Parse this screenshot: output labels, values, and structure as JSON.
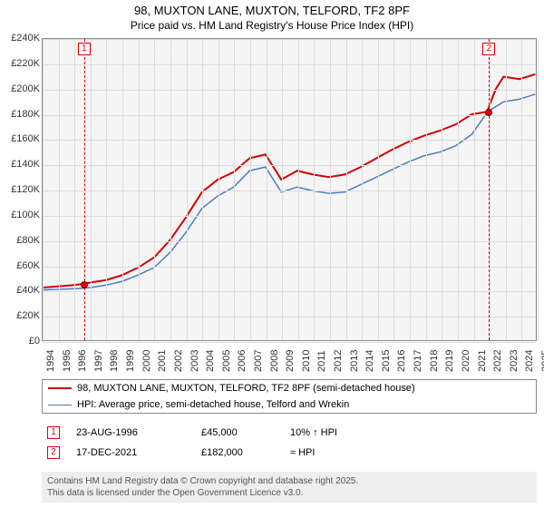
{
  "title_line1": "98, MUXTON LANE, MUXTON, TELFORD, TF2 8PF",
  "title_line2": "Price paid vs. HM Land Registry's House Price Index (HPI)",
  "chart": {
    "type": "line",
    "background_color": "#f5f5f5",
    "grid_color": "#dddddd",
    "border_color": "#888888",
    "x_min": 1994,
    "x_max": 2025,
    "y_min": 0,
    "y_max": 240000,
    "y_ticks": [
      0,
      20000,
      40000,
      60000,
      80000,
      100000,
      120000,
      140000,
      160000,
      180000,
      200000,
      220000,
      240000
    ],
    "y_tick_labels": [
      "£0",
      "£20K",
      "£40K",
      "£60K",
      "£80K",
      "£100K",
      "£120K",
      "£140K",
      "£160K",
      "£180K",
      "£200K",
      "£220K",
      "£240K"
    ],
    "x_ticks": [
      1994,
      1995,
      1996,
      1997,
      1998,
      1999,
      2000,
      2001,
      2002,
      2003,
      2004,
      2005,
      2006,
      2007,
      2008,
      2009,
      2010,
      2011,
      2012,
      2013,
      2014,
      2015,
      2016,
      2017,
      2018,
      2019,
      2020,
      2021,
      2022,
      2023,
      2024,
      2025
    ],
    "series": [
      {
        "name": "price_paid",
        "legend": "98, MUXTON LANE, MUXTON, TELFORD, TF2 8PF (semi-detached house)",
        "color": "#d00000",
        "width": 2,
        "points": [
          [
            1994,
            42000
          ],
          [
            1995,
            43000
          ],
          [
            1996,
            44000
          ],
          [
            1996.6,
            45000
          ],
          [
            1997,
            46000
          ],
          [
            1998,
            48000
          ],
          [
            1999,
            52000
          ],
          [
            2000,
            58000
          ],
          [
            2001,
            66000
          ],
          [
            2002,
            80000
          ],
          [
            2003,
            98000
          ],
          [
            2004,
            118000
          ],
          [
            2005,
            128000
          ],
          [
            2006,
            134000
          ],
          [
            2007,
            145000
          ],
          [
            2008,
            148000
          ],
          [
            2009,
            128000
          ],
          [
            2010,
            135000
          ],
          [
            2011,
            132000
          ],
          [
            2012,
            130000
          ],
          [
            2013,
            132000
          ],
          [
            2014,
            138000
          ],
          [
            2015,
            145000
          ],
          [
            2016,
            152000
          ],
          [
            2017,
            158000
          ],
          [
            2018,
            163000
          ],
          [
            2019,
            167000
          ],
          [
            2020,
            172000
          ],
          [
            2021,
            180000
          ],
          [
            2021.96,
            182000
          ],
          [
            2022.5,
            200000
          ],
          [
            2023,
            210000
          ],
          [
            2024,
            208000
          ],
          [
            2025,
            212000
          ]
        ]
      },
      {
        "name": "hpi",
        "legend": "HPI: Average price, semi-detached house, Telford and Wrekin",
        "color": "#4a7dc0",
        "width": 1.5,
        "points": [
          [
            1994,
            40000
          ],
          [
            1995,
            40500
          ],
          [
            1996,
            41000
          ],
          [
            1997,
            42000
          ],
          [
            1998,
            44000
          ],
          [
            1999,
            47000
          ],
          [
            2000,
            52000
          ],
          [
            2001,
            58000
          ],
          [
            2002,
            70000
          ],
          [
            2003,
            86000
          ],
          [
            2004,
            105000
          ],
          [
            2005,
            115000
          ],
          [
            2006,
            122000
          ],
          [
            2007,
            135000
          ],
          [
            2008,
            138000
          ],
          [
            2009,
            118000
          ],
          [
            2010,
            122000
          ],
          [
            2011,
            119000
          ],
          [
            2012,
            117000
          ],
          [
            2013,
            118000
          ],
          [
            2014,
            124000
          ],
          [
            2015,
            130000
          ],
          [
            2016,
            136000
          ],
          [
            2017,
            142000
          ],
          [
            2018,
            147000
          ],
          [
            2019,
            150000
          ],
          [
            2020,
            155000
          ],
          [
            2021,
            164000
          ],
          [
            2022,
            182000
          ],
          [
            2023,
            190000
          ],
          [
            2024,
            192000
          ],
          [
            2025,
            196000
          ]
        ]
      }
    ],
    "markers": [
      {
        "n": "1",
        "x": 1996.6,
        "y": 45000
      },
      {
        "n": "2",
        "x": 2021.96,
        "y": 182000
      }
    ]
  },
  "sales": [
    {
      "n": "1",
      "date": "23-AUG-1996",
      "price": "£45,000",
      "rel": "10% ↑ HPI"
    },
    {
      "n": "2",
      "date": "17-DEC-2021",
      "price": "£182,000",
      "rel": "≈ HPI"
    }
  ],
  "footer_line1": "Contains HM Land Registry data © Crown copyright and database right 2025.",
  "footer_line2": "This data is licensed under the Open Government Licence v3.0."
}
